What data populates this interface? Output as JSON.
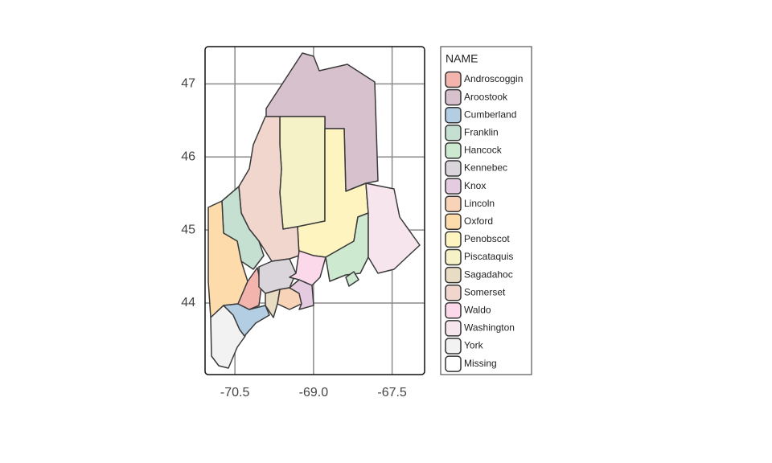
{
  "map": {
    "xlim": [
      -71.07,
      -66.88
    ],
    "ylim": [
      43.02,
      47.51
    ],
    "xticks": [
      -70.5,
      {
        "value": -69,
        "label": "-69.0"
      },
      -67.5
    ],
    "yticks": [
      44,
      45,
      46,
      47
    ],
    "grid": true,
    "legend": {
      "title": "NAME",
      "entries": [
        {
          "name": "Androscoggin",
          "color": "#f4b4ae"
        },
        {
          "name": "Aroostook",
          "color": "#d6c1cc"
        },
        {
          "name": "Cumberland",
          "color": "#b3cde3"
        },
        {
          "name": "Franklin",
          "color": "#c5e0d0"
        },
        {
          "name": "Hancock",
          "color": "#cde9cf"
        },
        {
          "name": "Kennebec",
          "color": "#d9d5da"
        },
        {
          "name": "Knox",
          "color": "#e4cbe0"
        },
        {
          "name": "Lincoln",
          "color": "#f9d3b7"
        },
        {
          "name": "Oxford",
          "color": "#fedbab"
        },
        {
          "name": "Penobscot",
          "color": "#fef4c0"
        },
        {
          "name": "Piscataquis",
          "color": "#f6f2c8"
        },
        {
          "name": "Sagadahoc",
          "color": "#e8dcc4"
        },
        {
          "name": "Somerset",
          "color": "#f0d6cd"
        },
        {
          "name": "Waldo",
          "color": "#fbd9ea"
        },
        {
          "name": "Washington",
          "color": "#f6e5ed"
        },
        {
          "name": "York",
          "color": "#f2f2f2"
        },
        {
          "name": "Missing",
          "color": "#ffffff"
        }
      ]
    }
  }
}
